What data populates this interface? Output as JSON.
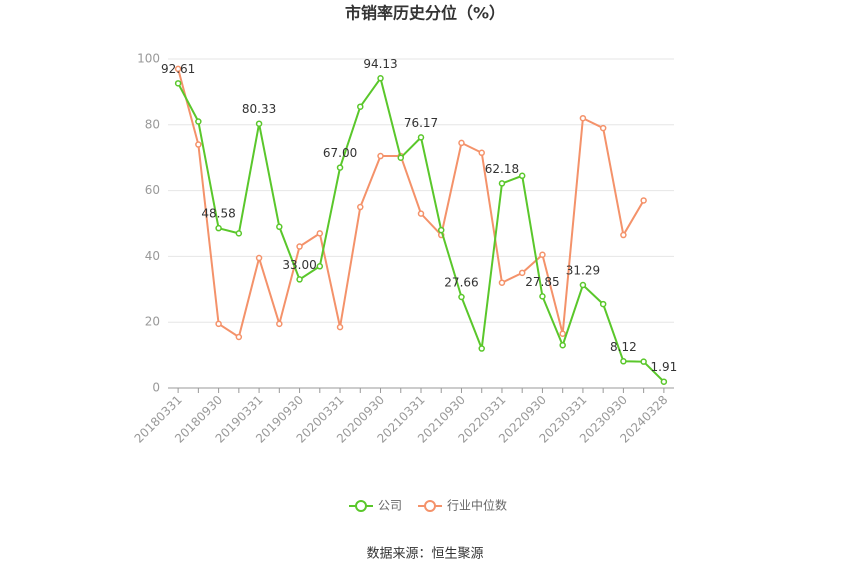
{
  "chart_data": {
    "type": "line",
    "title": "市销率历史分位（%）",
    "source": "数据来源：恒生聚源",
    "categories": [
      "20180331",
      null,
      "20180930",
      null,
      "20190331",
      null,
      "20190930",
      null,
      "20200331",
      null,
      "20200930",
      null,
      "20210331",
      null,
      "20210930",
      null,
      "20220331",
      null,
      "20220930",
      null,
      "20230331",
      null,
      "20230930",
      null,
      "20240328"
    ],
    "series": [
      {
        "name": "公司",
        "color": "#5ac72b",
        "values": [
          92.61,
          81,
          48.58,
          47,
          80.33,
          49,
          33,
          37,
          67,
          85.5,
          94.13,
          70,
          76.17,
          48,
          27.66,
          12,
          62.18,
          64.5,
          27.85,
          13,
          31.29,
          25.5,
          8.12,
          8,
          1.91
        ],
        "value_labels": [
          "92.61",
          null,
          "48.58",
          null,
          "80.33",
          null,
          "33.00",
          null,
          "67.00",
          null,
          "94.13",
          null,
          "76.17",
          null,
          "27.66",
          null,
          "62.18",
          null,
          "27.85",
          null,
          "31.29",
          null,
          "8.12",
          null,
          "1.91"
        ]
      },
      {
        "name": "行业中位数",
        "color": "#f4926a",
        "values": [
          97,
          74,
          19.5,
          15.5,
          39.5,
          19.5,
          43,
          47,
          18.5,
          55,
          70.5,
          70.5,
          53,
          46.5,
          74.5,
          71.5,
          32,
          35,
          40.5,
          16.5,
          82,
          79,
          46.5,
          57,
          null
        ]
      }
    ],
    "ylim": [
      0,
      100
    ],
    "yticks": [
      0,
      20,
      40,
      60,
      80,
      100
    ],
    "grid": true,
    "legend": "bottom"
  }
}
